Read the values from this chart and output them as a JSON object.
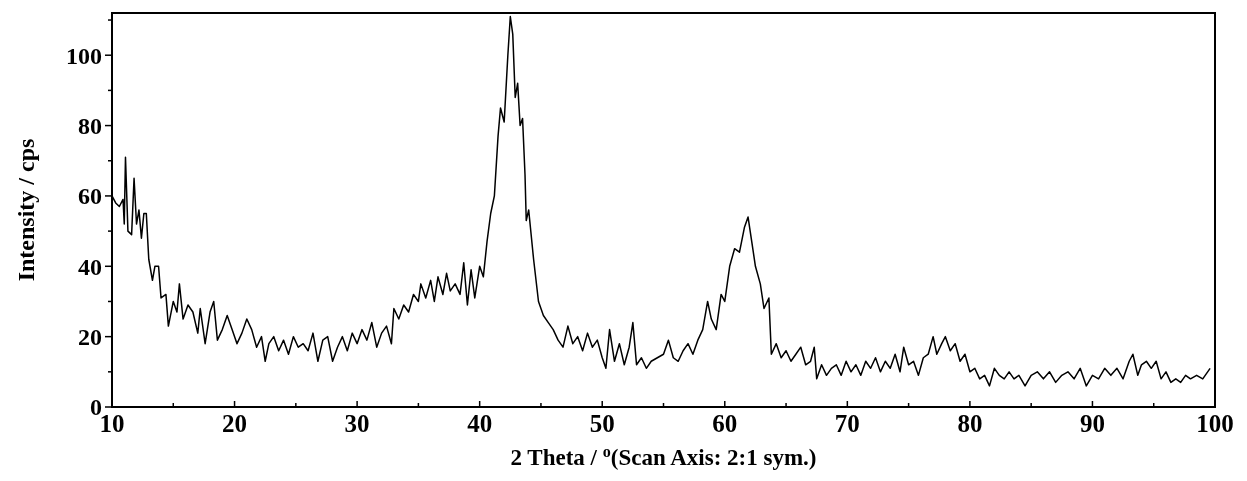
{
  "chart_data": {
    "type": "line",
    "xlabel": "2 Theta / $^{o}$(Scan Axis: 2:1 sym.)",
    "ylabel": "Intensity / cps",
    "xlim": [
      10,
      100
    ],
    "ylim": [
      0,
      112
    ],
    "xticks": [
      10,
      {
        "value": 15,
        "label": null
      },
      20,
      {
        "value": 25,
        "label": null
      },
      30,
      {
        "value": 35,
        "label": null
      },
      40,
      {
        "value": 45,
        "label": null
      },
      50,
      {
        "value": 55,
        "label": null
      },
      60,
      {
        "value": 65,
        "label": null
      },
      70,
      {
        "value": 75,
        "label": null
      },
      80,
      {
        "value": 85,
        "label": null
      },
      90,
      {
        "value": 95,
        "label": null
      },
      100
    ],
    "yticks": [
      0,
      {
        "value": 10,
        "label": null
      },
      20,
      {
        "value": 30,
        "label": null
      },
      40,
      {
        "value": 50,
        "label": null
      },
      60,
      {
        "value": 70,
        "label": null
      },
      80,
      {
        "value": 90,
        "label": null
      },
      100,
      {
        "value": 110,
        "label": null
      }
    ],
    "grid": false,
    "marker": "none",
    "line_style": "solid",
    "series": [
      {
        "color": "#000000",
        "x": [
          10,
          10.3,
          10.6,
          10.9,
          11.0,
          11.1,
          11.3,
          11.6,
          11.8,
          12.0,
          12.2,
          12.4,
          12.6,
          12.8,
          13.0,
          13.3,
          13.5,
          13.8,
          14.0,
          14.4,
          14.6,
          15.0,
          15.3,
          15.5,
          15.8,
          16.2,
          16.6,
          17.0,
          17.2,
          17.6,
          18.0,
          18.3,
          18.6,
          19.0,
          19.4,
          19.8,
          20.2,
          20.6,
          21.0,
          21.4,
          21.8,
          22.2,
          22.5,
          22.8,
          23.2,
          23.6,
          24.0,
          24.4,
          24.8,
          25.2,
          25.6,
          26.0,
          26.4,
          26.8,
          27.2,
          27.6,
          28.0,
          28.4,
          28.8,
          29.2,
          29.6,
          30.0,
          30.4,
          30.8,
          31.2,
          31.6,
          32.0,
          32.4,
          32.8,
          33.0,
          33.4,
          33.8,
          34.2,
          34.6,
          35.0,
          35.2,
          35.6,
          36.0,
          36.3,
          36.6,
          37.0,
          37.3,
          37.6,
          38.0,
          38.4,
          38.7,
          39.0,
          39.3,
          39.6,
          40.0,
          40.3,
          40.6,
          40.9,
          41.2,
          41.5,
          41.7,
          42.0,
          42.3,
          42.5,
          42.7,
          42.9,
          43.1,
          43.3,
          43.5,
          43.7,
          43.8,
          44.0,
          44.4,
          44.8,
          45.2,
          45.6,
          46.0,
          46.4,
          46.8,
          47.2,
          47.6,
          48.0,
          48.4,
          48.8,
          49.2,
          49.6,
          50.0,
          50.3,
          50.6,
          51.0,
          51.4,
          51.8,
          52.2,
          52.5,
          52.8,
          53.2,
          53.6,
          54.0,
          54.5,
          55.0,
          55.4,
          55.8,
          56.2,
          56.6,
          57.0,
          57.4,
          57.8,
          58.2,
          58.6,
          58.9,
          59.3,
          59.7,
          60.0,
          60.4,
          60.8,
          61.2,
          61.6,
          61.9,
          62.2,
          62.5,
          62.9,
          63.2,
          63.6,
          63.8,
          64.2,
          64.6,
          65.0,
          65.4,
          65.8,
          66.2,
          66.6,
          67.0,
          67.3,
          67.5,
          67.9,
          68.3,
          68.7,
          69.1,
          69.5,
          69.9,
          70.3,
          70.7,
          71.1,
          71.5,
          71.9,
          72.3,
          72.7,
          73.1,
          73.5,
          73.9,
          74.3,
          74.6,
          75.0,
          75.4,
          75.8,
          76.2,
          76.6,
          77.0,
          77.3,
          77.7,
          78.0,
          78.4,
          78.8,
          79.2,
          79.6,
          80.0,
          80.4,
          80.8,
          81.2,
          81.6,
          82.0,
          82.4,
          82.8,
          83.2,
          83.6,
          84.0,
          84.5,
          85.0,
          85.5,
          86.0,
          86.5,
          87.0,
          87.5,
          88.0,
          88.5,
          89.0,
          89.5,
          90.0,
          90.5,
          91.0,
          91.5,
          92.0,
          92.5,
          93.0,
          93.3,
          93.7,
          94.0,
          94.4,
          94.8,
          95.2,
          95.6,
          96.0,
          96.4,
          96.8,
          97.2,
          97.6,
          98.0,
          98.5,
          99.0,
          99.4,
          99.6
        ],
        "values": [
          60,
          58,
          57,
          59,
          52,
          71,
          50,
          49,
          65,
          52,
          56,
          48,
          55,
          55,
          42,
          36,
          40,
          40,
          31,
          32,
          23,
          30,
          27,
          35,
          25,
          29,
          27,
          21,
          28,
          18,
          27,
          30,
          19,
          22,
          26,
          22,
          18,
          21,
          25,
          22,
          17,
          20,
          13,
          18,
          20,
          16,
          19,
          15,
          20,
          17,
          18,
          16,
          21,
          13,
          19,
          20,
          13,
          17,
          20,
          16,
          21,
          18,
          22,
          19,
          24,
          17,
          21,
          23,
          18,
          28,
          25,
          29,
          27,
          32,
          30,
          35,
          31,
          36,
          30,
          37,
          32,
          38,
          33,
          35,
          32,
          41,
          29,
          39,
          31,
          40,
          37,
          47,
          55,
          60,
          77,
          85,
          81,
          100,
          111,
          106,
          88,
          92,
          80,
          82,
          66,
          53,
          56,
          42,
          30,
          26,
          24,
          22,
          19,
          17,
          23,
          18,
          20,
          16,
          21,
          17,
          19,
          14,
          11,
          22,
          13,
          18,
          12,
          17,
          24,
          12,
          14,
          11,
          13,
          14,
          15,
          19,
          14,
          13,
          16,
          18,
          15,
          19,
          22,
          30,
          25,
          22,
          32,
          30,
          40,
          45,
          44,
          51,
          54,
          47,
          40,
          35,
          28,
          31,
          15,
          18,
          14,
          16,
          13,
          15,
          17,
          12,
          13,
          17,
          8,
          12,
          9,
          11,
          12,
          9,
          13,
          10,
          12,
          9,
          13,
          11,
          14,
          10,
          13,
          11,
          15,
          10,
          17,
          12,
          13,
          9,
          14,
          15,
          20,
          15,
          18,
          20,
          16,
          18,
          13,
          15,
          10,
          11,
          8,
          9,
          6,
          11,
          9,
          8,
          10,
          8,
          9,
          6,
          9,
          10,
          8,
          10,
          7,
          9,
          10,
          8,
          11,
          6,
          9,
          8,
          11,
          9,
          11,
          8,
          13,
          15,
          9,
          12,
          13,
          11,
          13,
          8,
          10,
          7,
          8,
          7,
          9,
          8,
          9,
          8,
          10,
          11
        ]
      }
    ]
  }
}
